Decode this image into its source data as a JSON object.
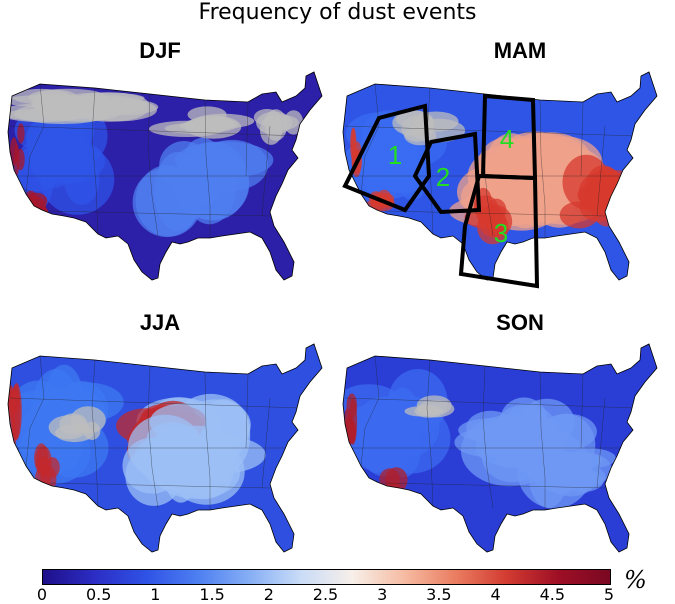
{
  "title": "Frequency of dust events",
  "panels": [
    {
      "label": "DJF",
      "colors": {
        "land": "#2c1fa8",
        "west": "#2f54e8",
        "hot": "#a8152a",
        "mid": "#4f7ff0",
        "gray": "#bdbdbd"
      }
    },
    {
      "label": "MAM",
      "colors": {
        "land": "#2f55e6",
        "west": "#3a6cf2",
        "hot": "#d73a2e",
        "mid": "#f0a28a",
        "gray": "#bdbdbd"
      }
    },
    {
      "label": "JJA",
      "colors": {
        "land": "#2e4fe0",
        "west": "#3d78f2",
        "hot": "#c3282c",
        "mid": "#9cc0f6",
        "gray": "#bdbdbd"
      }
    },
    {
      "label": "SON",
      "colors": {
        "land": "#2a3ed6",
        "west": "#3c6bf0",
        "hot": "#b01f2b",
        "mid": "#6f98f4",
        "gray": "#bdbdbd"
      }
    }
  ],
  "regions": [
    "1",
    "2",
    "3",
    "4"
  ],
  "colorbar": {
    "ticks": [
      "0",
      "0.5",
      "1",
      "1.5",
      "2",
      "2.5",
      "3",
      "3.5",
      "4",
      "4.5",
      "5"
    ],
    "unit": "%",
    "colors": [
      "#1f0f8a",
      "#2c2dc4",
      "#2f52e6",
      "#4d7ff1",
      "#86aef5",
      "#c9dcf7",
      "#f7efe9",
      "#f6bca3",
      "#ea7d61",
      "#d23b31",
      "#9e0f25",
      "#7a0822"
    ]
  }
}
